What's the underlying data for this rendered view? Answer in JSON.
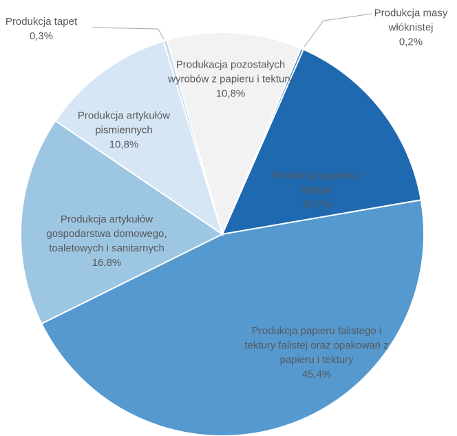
{
  "chart_data": {
    "type": "pie",
    "categories": [
      "Produkcja masy włóknistej",
      "Produkcja papieru i tektury",
      "Produkcja papieru falistego i tektury falistej oraz opakowań z papieru i tektury",
      "Produkcja artykułów gospodarstwa domowego, toaletowych i sanitarnych",
      "Produkcja artykułów pismiennych",
      "Produkcja tapet",
      "Produkacja pozostałych wyrobów z papieru i tektury"
    ],
    "values": [
      0.2,
      15.7,
      45.4,
      16.8,
      10.8,
      0.3,
      10.8
    ],
    "value_labels": [
      "0,2%",
      "15,7%",
      "45,4%",
      "16,8%",
      "10,8%",
      "0,3%",
      "10,8%"
    ],
    "colors": [
      "#2e75b6",
      "#1f69b1",
      "#5599cf",
      "#9dc6e2",
      "#d6e6f5",
      "#c7dcef",
      "#f2f2f2"
    ]
  }
}
